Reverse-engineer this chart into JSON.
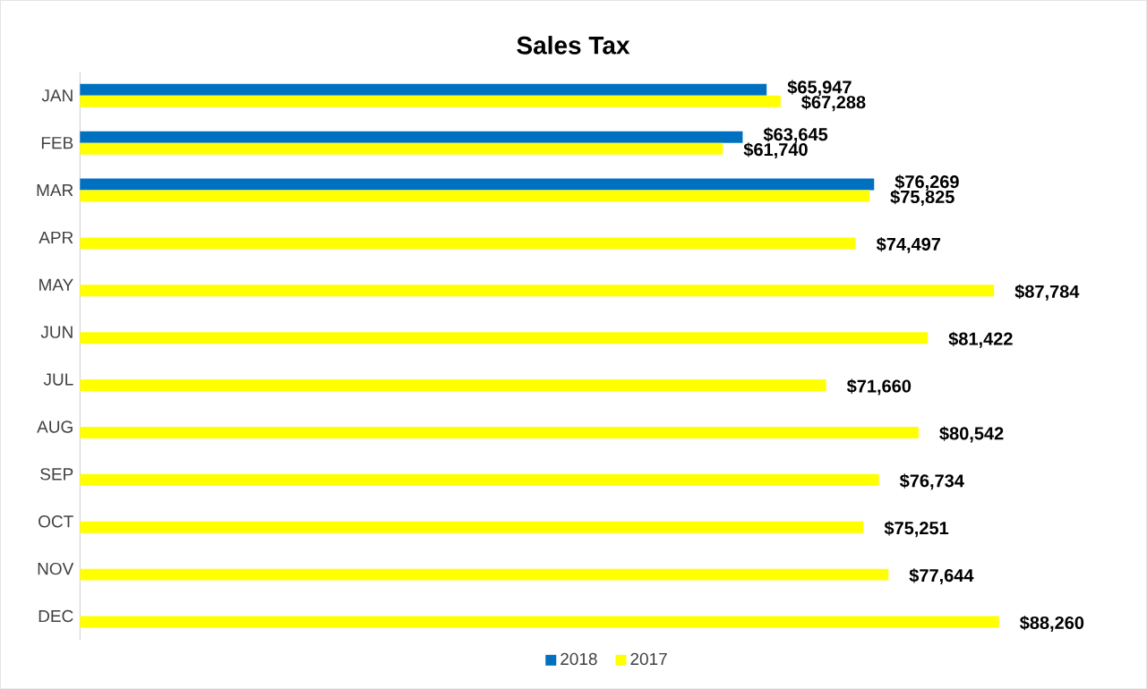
{
  "chart_data": {
    "type": "bar",
    "orientation": "horizontal",
    "title": "Sales Tax",
    "categories": [
      "JAN",
      "FEB",
      "MAR",
      "APR",
      "MAY",
      "JUN",
      "JUL",
      "AUG",
      "SEP",
      "OCT",
      "NOV",
      "DEC"
    ],
    "series": [
      {
        "name": "2018",
        "color": "#0070c0",
        "values": [
          65947,
          63645,
          76269,
          null,
          null,
          null,
          null,
          null,
          null,
          null,
          null,
          null
        ],
        "value_labels": [
          "$65,947",
          "$63,645",
          "$76,269",
          null,
          null,
          null,
          null,
          null,
          null,
          null,
          null,
          null
        ]
      },
      {
        "name": "2017",
        "color": "#ffff00",
        "values": [
          67288,
          61740,
          75825,
          74497,
          87784,
          81422,
          71660,
          80542,
          76734,
          75251,
          77644,
          88260
        ],
        "value_labels": [
          "$67,288",
          "$61,740",
          "$75,825",
          "$74,497",
          "$87,784",
          "$81,422",
          "$71,660",
          "$80,542",
          "$76,734",
          "$75,251",
          "$77,644",
          "$88,260"
        ]
      }
    ],
    "legend": "bottom",
    "grid": false
  }
}
